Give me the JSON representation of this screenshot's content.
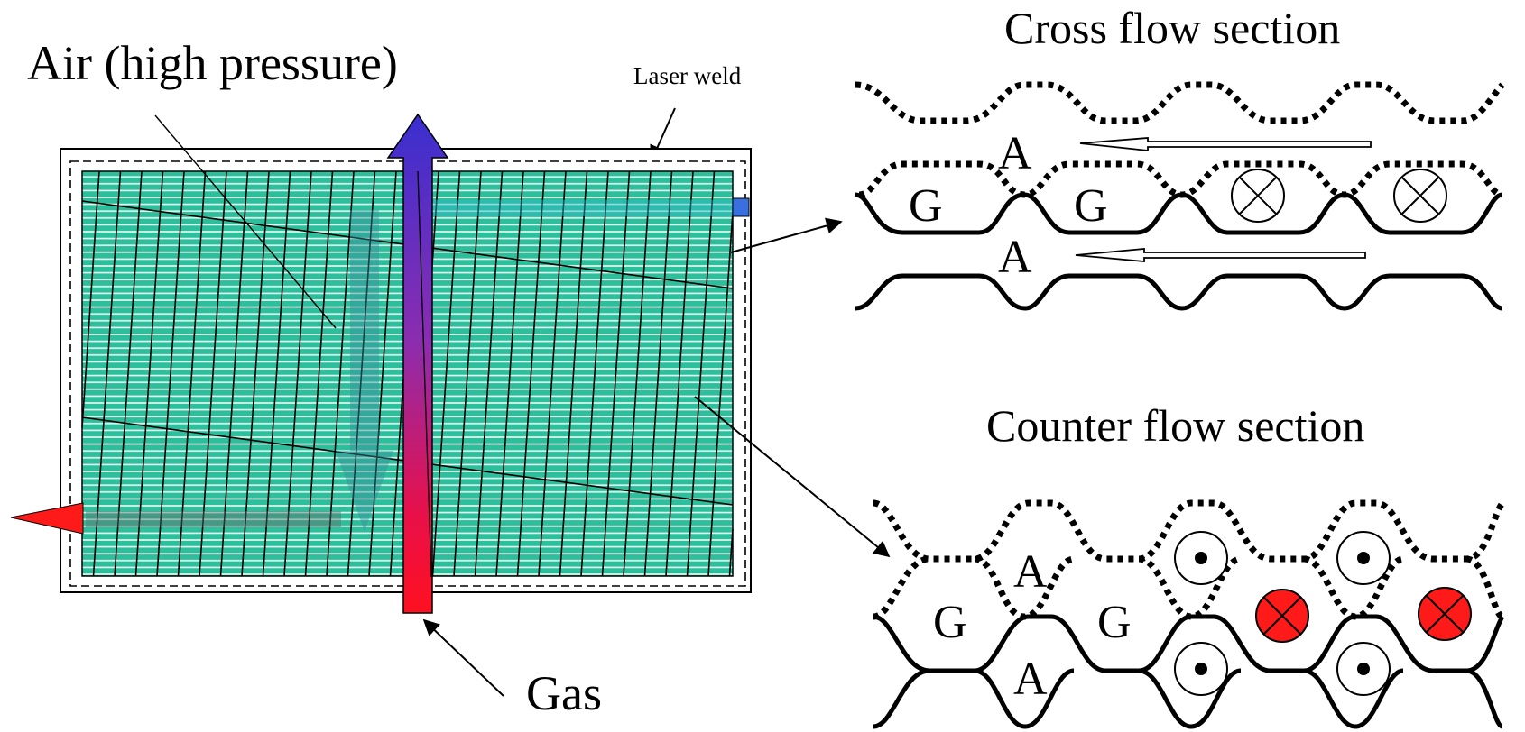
{
  "labels": {
    "air": "Air (high pressure)",
    "laser_weld": "Laser weld",
    "gas": "Gas",
    "cross_title": "Cross flow section",
    "counter_title": "Counter flow section"
  },
  "cross_section": {
    "row1_letters": [
      "A"
    ],
    "row2_letters": [
      "G",
      "G"
    ],
    "row3_letters": [
      "A"
    ]
  },
  "counter_section": {
    "row1_letters": [
      "A"
    ],
    "row2_letters": [
      "G",
      "G"
    ],
    "row3_letters": [
      "A"
    ]
  },
  "colors": {
    "plate_fill": "#2dbf9c",
    "plate_stripe": "#ffffff",
    "arrow_top": "#3a2fcf",
    "arrow_bottom": "#ff1020",
    "red_marker": "#ff1a1a",
    "blue_port": "#3a6fe0"
  }
}
